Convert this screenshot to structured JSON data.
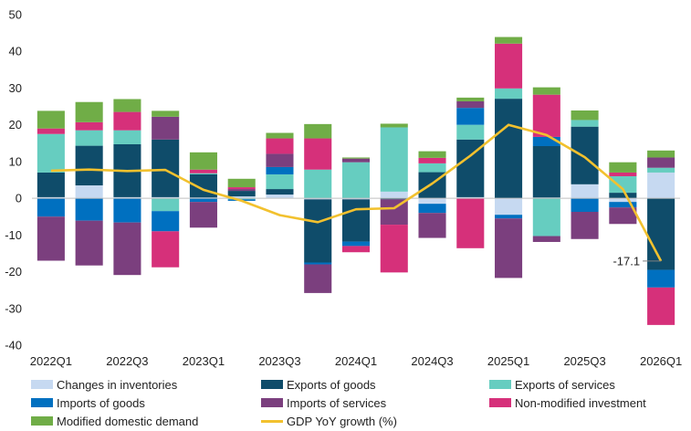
{
  "chart_data": {
    "type": "bar",
    "stacked": true,
    "title": "",
    "xlabel": "",
    "ylabel": "",
    "ylim": [
      -40,
      50
    ],
    "yticks": [
      -40,
      -30,
      -20,
      -10,
      0,
      10,
      20,
      30,
      40,
      50
    ],
    "categories": [
      "2022Q1",
      "2022Q2",
      "2022Q3",
      "2022Q4",
      "2023Q1",
      "2023Q2",
      "2023Q3",
      "2023Q4",
      "2024Q1",
      "2024Q2",
      "2024Q3",
      "2024Q4",
      "2025Q1",
      "2025Q2",
      "2025Q3",
      "2025Q4",
      "2026Q1"
    ],
    "xtick_labels": [
      "2022Q1",
      "2022Q3",
      "2023Q1",
      "2023Q3",
      "2024Q1",
      "2024Q3",
      "2025Q1",
      "2025Q3",
      "2026Q1"
    ],
    "series": [
      {
        "name": "Changes in inventories",
        "color": "#c6d9f1",
        "values": [
          0.3,
          3.5,
          0.3,
          0.3,
          0.2,
          0.5,
          1.0,
          -0.3,
          -0.3,
          1.8,
          -1.5,
          0.3,
          -4.5,
          0.2,
          3.8,
          -1.0,
          7.0
        ]
      },
      {
        "name": "Exports of goods",
        "color": "#0f4c6a",
        "values": [
          6.7,
          10.8,
          14.4,
          15.7,
          6.3,
          1.5,
          1.5,
          -17.2,
          -11.5,
          -0.3,
          7.1,
          15.7,
          27.1,
          14.0,
          15.7,
          1.5,
          -19.5
        ]
      },
      {
        "name": "Exports of services",
        "color": "#66cdc0",
        "values": [
          10.5,
          4.2,
          3.8,
          -3.5,
          0.3,
          -0.3,
          4.0,
          7.8,
          9.8,
          17.5,
          2.4,
          4.0,
          2.8,
          -10.3,
          1.8,
          4.5,
          1.3
        ]
      },
      {
        "name": "Imports of goods",
        "color": "#0070c0",
        "values": [
          -5.0,
          -6.1,
          -6.6,
          -5.5,
          -1.0,
          -0.4,
          2.0,
          -0.5,
          -1.2,
          0.0,
          -2.5,
          4.6,
          -1.0,
          2.5,
          -3.7,
          -1.5,
          -4.8
        ]
      },
      {
        "name": "Imports of services",
        "color": "#7b3f7e",
        "values": [
          -12.0,
          -12.2,
          -14.3,
          6.2,
          -7.0,
          0.5,
          3.6,
          -7.8,
          1.0,
          -6.9,
          -6.8,
          1.8,
          -16.2,
          -1.6,
          -7.4,
          -4.5,
          2.8
        ]
      },
      {
        "name": "Non-modified investment",
        "color": "#d6307a",
        "values": [
          1.5,
          2.2,
          5.0,
          -9.8,
          1.0,
          0.5,
          4.2,
          8.5,
          -1.7,
          -13.0,
          1.5,
          -13.6,
          12.2,
          11.5,
          0.0,
          1.0,
          -10.2
        ]
      },
      {
        "name": "Modified domestic demand",
        "color": "#70ad47",
        "values": [
          4.8,
          5.5,
          3.5,
          1.6,
          4.7,
          2.3,
          1.5,
          3.9,
          0.3,
          1.0,
          1.8,
          1.0,
          1.8,
          2.0,
          2.6,
          2.8,
          1.9
        ]
      }
    ],
    "line": {
      "name": "GDP YoY growth (%)",
      "color": "#f2c12e",
      "values": [
        7.5,
        7.8,
        7.4,
        7.7,
        2.3,
        -0.7,
        -4.6,
        -6.5,
        -3.0,
        -2.7,
        4.0,
        11.6,
        20.0,
        17.2,
        11.2,
        2.5,
        -17.1
      ]
    },
    "annotation": {
      "text": "-17.1",
      "category": "2026Q1",
      "value": -17.1
    },
    "grid": false,
    "legend_position": "bottom"
  }
}
